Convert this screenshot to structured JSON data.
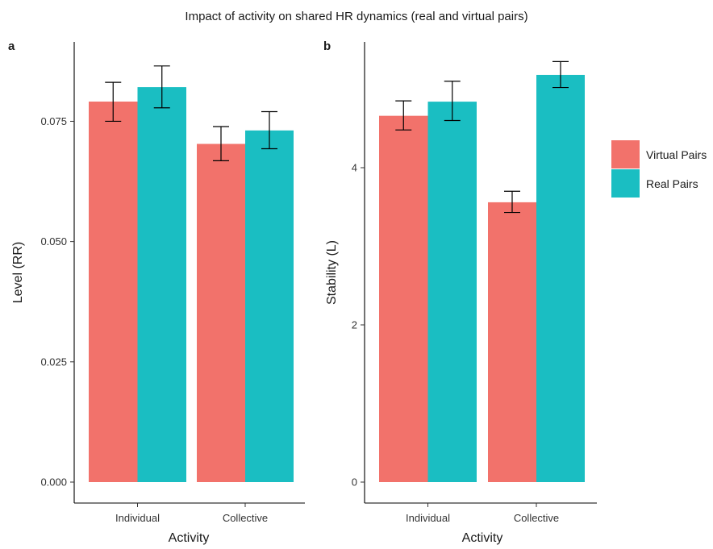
{
  "figure_title": "Impact of activity on shared HR dynamics (real and virtual pairs)",
  "colors": {
    "virtual": "#F2726B",
    "real": "#1ABEC2"
  },
  "legend": {
    "items": [
      "Virtual Pairs",
      "Real Pairs"
    ],
    "placement": "right"
  },
  "chart_data": [
    {
      "type": "bar",
      "panel": "a",
      "categories": [
        "Individual",
        "Collective"
      ],
      "series": [
        {
          "name": "Virtual Pairs",
          "values": [
            0.0791,
            0.0703
          ],
          "error_low": [
            0.075,
            0.0668
          ],
          "error_high": [
            0.0831,
            0.0739
          ]
        },
        {
          "name": "Real Pairs",
          "values": [
            0.0821,
            0.0731
          ],
          "error_low": [
            0.0778,
            0.0693
          ],
          "error_high": [
            0.0865,
            0.077
          ]
        }
      ],
      "xlabel": "Activity",
      "ylabel": "Level (RR)",
      "ylim": [
        0,
        0.0915
      ],
      "yticks": [
        0.0,
        0.025,
        0.05,
        0.075
      ],
      "ytick_labels": [
        "0.000",
        "0.025",
        "0.050",
        "0.075"
      ],
      "grid": false
    },
    {
      "type": "bar",
      "panel": "b",
      "categories": [
        "Individual",
        "Collective"
      ],
      "series": [
        {
          "name": "Virtual Pairs",
          "values": [
            4.66,
            3.56
          ],
          "error_low": [
            4.48,
            3.43
          ],
          "error_high": [
            4.85,
            3.7
          ]
        },
        {
          "name": "Real Pairs",
          "values": [
            4.84,
            5.18
          ],
          "error_low": [
            4.6,
            5.02
          ],
          "error_high": [
            5.1,
            5.35
          ]
        }
      ],
      "xlabel": "Activity",
      "ylabel": "Stability (L)",
      "ylim": [
        0,
        5.6
      ],
      "yticks": [
        0,
        2,
        4
      ],
      "ytick_labels": [
        "0",
        "2",
        "4"
      ],
      "grid": false
    }
  ]
}
